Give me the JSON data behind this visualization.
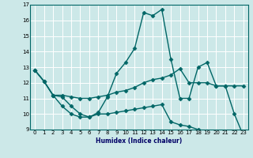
{
  "xlabel": "Humidex (Indice chaleur)",
  "ylabel": "",
  "xlim": [
    -0.5,
    23.5
  ],
  "ylim": [
    9,
    17
  ],
  "yticks": [
    9,
    10,
    11,
    12,
    13,
    14,
    15,
    16,
    17
  ],
  "xticks": [
    0,
    1,
    2,
    3,
    4,
    5,
    6,
    7,
    8,
    9,
    10,
    11,
    12,
    13,
    14,
    15,
    16,
    17,
    18,
    19,
    20,
    21,
    22,
    23
  ],
  "bg_color": "#cce8e8",
  "grid_color": "#ffffff",
  "line_color": "#006666",
  "line_width": 1.0,
  "marker": "D",
  "marker_size": 2.5,
  "series": [
    {
      "x": [
        0,
        1,
        2,
        3,
        4,
        5,
        6,
        7,
        8,
        9,
        10,
        11,
        12,
        13,
        14,
        15,
        16,
        17,
        18,
        19,
        20,
        21,
        22,
        23
      ],
      "y": [
        12.8,
        12.1,
        11.2,
        10.5,
        10.0,
        9.8,
        9.8,
        10.1,
        11.1,
        12.6,
        13.3,
        14.2,
        16.5,
        16.3,
        16.7,
        13.5,
        11.0,
        11.0,
        13.0,
        13.3,
        11.8,
        11.8,
        10.0,
        8.6
      ]
    },
    {
      "x": [
        0,
        1,
        2,
        3,
        4,
        5,
        6,
        7,
        8,
        9,
        10,
        11,
        12,
        13,
        14,
        15,
        16,
        17,
        18,
        19,
        20,
        21,
        22,
        23
      ],
      "y": [
        12.8,
        12.1,
        11.2,
        11.2,
        11.1,
        11.0,
        11.0,
        11.1,
        11.2,
        11.4,
        11.5,
        11.7,
        12.0,
        12.2,
        12.3,
        12.5,
        12.9,
        12.0,
        12.0,
        12.0,
        11.8,
        11.8,
        11.8,
        11.8
      ]
    },
    {
      "x": [
        0,
        1,
        2,
        3,
        4,
        5,
        6,
        7,
        8,
        9,
        10,
        11,
        12,
        13,
        14,
        15,
        16,
        17,
        18,
        19,
        20,
        21,
        22,
        23
      ],
      "y": [
        12.8,
        12.1,
        11.2,
        11.1,
        10.5,
        10.0,
        9.8,
        10.0,
        10.0,
        10.1,
        10.2,
        10.3,
        10.4,
        10.5,
        10.6,
        9.5,
        9.3,
        9.2,
        9.0,
        8.9,
        8.8,
        8.7,
        8.6,
        8.6
      ]
    }
  ]
}
